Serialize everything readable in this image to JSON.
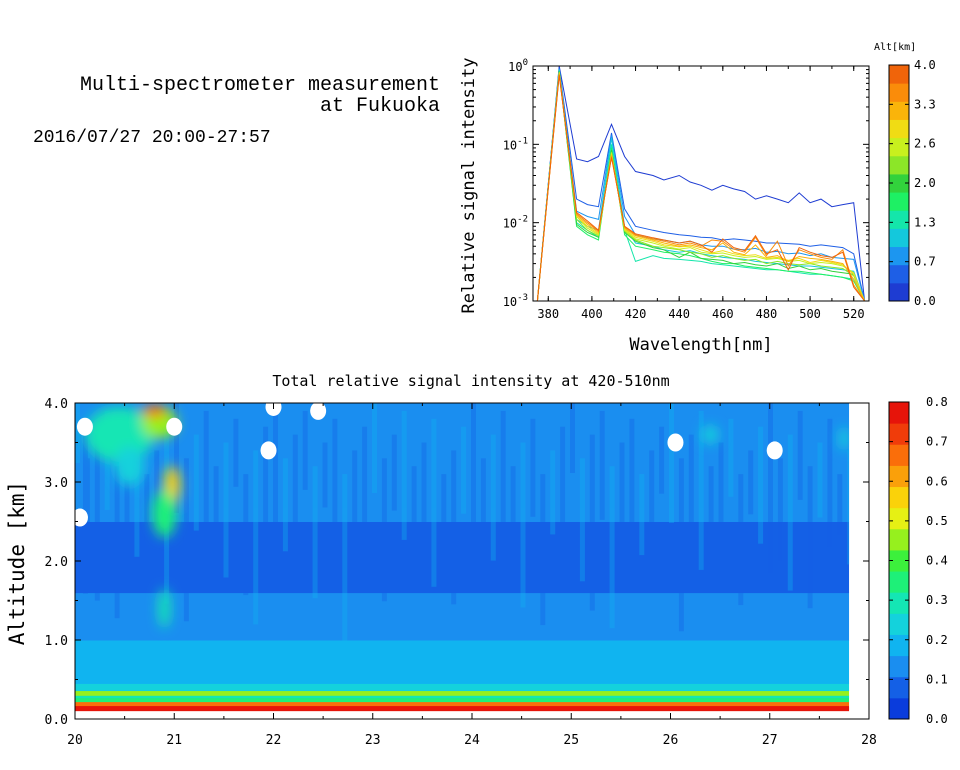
{
  "header": {
    "title_line1": "Multi-spectrometer measurement",
    "title_line2": "at Fukuoka",
    "time_range": "2016/07/27 20:00-27:57"
  },
  "chart_data": [
    {
      "type": "line",
      "xlabel": "Wavelength[nm]",
      "ylabel": "Relative signal intensity",
      "y_scale": "log",
      "xlim": [
        373,
        527
      ],
      "ylim": [
        0.001,
        1
      ],
      "x_ticks": [
        "380",
        "400",
        "420",
        "440",
        "460",
        "480",
        "500",
        "520"
      ],
      "y_ticks": [
        "10^-3",
        "10^-2",
        "10^-1",
        "10^0"
      ],
      "x": [
        375,
        385,
        393,
        398,
        403,
        409,
        415,
        420,
        428,
        433,
        440,
        445,
        450,
        455,
        460,
        465,
        470,
        475,
        480,
        485,
        490,
        495,
        500,
        505,
        510,
        515,
        520,
        525
      ],
      "series": [
        {
          "alt": 0.0,
          "color": "#1e3cd2",
          "values": [
            0.001,
            1.0,
            0.065,
            0.06,
            0.07,
            0.18,
            0.07,
            0.045,
            0.04,
            0.035,
            0.04,
            0.033,
            0.03,
            0.026,
            0.03,
            0.027,
            0.025,
            0.02,
            0.022,
            0.02,
            0.018,
            0.024,
            0.018,
            0.02,
            0.016,
            0.017,
            0.018,
            0.001
          ]
        },
        {
          "alt": 0.4,
          "color": "#1e5fe6",
          "values": [
            0.001,
            0.95,
            0.02,
            0.017,
            0.016,
            0.14,
            0.015,
            0.009,
            0.008,
            0.0075,
            0.007,
            0.0068,
            0.0065,
            0.0064,
            0.006,
            0.0062,
            0.006,
            0.0058,
            0.0055,
            0.0055,
            0.0054,
            0.0053,
            0.005,
            0.0052,
            0.005,
            0.0048,
            0.004,
            0.001
          ]
        },
        {
          "alt": 0.7,
          "color": "#1c96f0",
          "values": [
            0.001,
            0.92,
            0.014,
            0.012,
            0.011,
            0.13,
            0.012,
            0.007,
            0.0062,
            0.006,
            0.0055,
            0.0058,
            0.0052,
            0.005,
            0.005,
            0.0046,
            0.0045,
            0.0047,
            0.0042,
            0.0043,
            0.004,
            0.0041,
            0.0038,
            0.004,
            0.0036,
            0.0035,
            0.0034,
            0.001
          ]
        },
        {
          "alt": 1.0,
          "color": "#14c8dc",
          "values": [
            0.001,
            0.9,
            0.011,
            0.009,
            0.008,
            0.12,
            0.009,
            0.0055,
            0.005,
            0.0045,
            0.0042,
            0.0044,
            0.004,
            0.0038,
            0.0036,
            0.0035,
            0.0034,
            0.0032,
            0.0031,
            0.003,
            0.0029,
            0.0028,
            0.0028,
            0.0027,
            0.0026,
            0.0025,
            0.0024,
            0.001
          ]
        },
        {
          "alt": 1.3,
          "color": "#14e6aa",
          "values": [
            0.001,
            0.88,
            0.01,
            0.008,
            0.0065,
            0.1,
            0.008,
            0.0032,
            0.0038,
            0.0035,
            0.0034,
            0.0033,
            0.0032,
            0.003,
            0.0029,
            0.0028,
            0.0027,
            0.0026,
            0.0025,
            0.0025,
            0.0024,
            0.0023,
            0.0022,
            0.0022,
            0.0021,
            0.002,
            0.0019,
            0.001
          ]
        },
        {
          "alt": 1.7,
          "color": "#1ef064",
          "values": [
            0.001,
            0.86,
            0.009,
            0.007,
            0.006,
            0.09,
            0.007,
            0.005,
            0.0045,
            0.0042,
            0.004,
            0.0038,
            0.0035,
            0.0032,
            0.003,
            0.003,
            0.0028,
            0.0027,
            0.0026,
            0.0025,
            0.0024,
            0.0024,
            0.0023,
            0.0022,
            0.0021,
            0.002,
            0.0018,
            0.001
          ]
        },
        {
          "alt": 2.0,
          "color": "#32d23c",
          "values": [
            0.001,
            0.85,
            0.0095,
            0.0075,
            0.0065,
            0.085,
            0.0075,
            0.0058,
            0.0048,
            0.0045,
            0.0036,
            0.0042,
            0.0035,
            0.0034,
            0.0033,
            0.003,
            0.0031,
            0.0029,
            0.0028,
            0.003,
            0.0026,
            0.0028,
            0.0025,
            0.0026,
            0.0024,
            0.0023,
            0.0022,
            0.001
          ]
        },
        {
          "alt": 2.3,
          "color": "#8ce628",
          "values": [
            0.001,
            0.84,
            0.011,
            0.008,
            0.0068,
            0.08,
            0.0078,
            0.006,
            0.005,
            0.0048,
            0.0045,
            0.0042,
            0.004,
            0.0036,
            0.0038,
            0.0035,
            0.0033,
            0.0034,
            0.003,
            0.0032,
            0.003,
            0.0029,
            0.003,
            0.0028,
            0.0027,
            0.0026,
            0.0021,
            0.001
          ]
        },
        {
          "alt": 2.6,
          "color": "#c8f01e",
          "values": [
            0.001,
            0.83,
            0.012,
            0.0085,
            0.007,
            0.078,
            0.008,
            0.0062,
            0.0055,
            0.005,
            0.0046,
            0.0048,
            0.0042,
            0.004,
            0.0041,
            0.0038,
            0.0036,
            0.0037,
            0.0034,
            0.0035,
            0.0032,
            0.0033,
            0.003,
            0.0031,
            0.003,
            0.0028,
            0.0023,
            0.001
          ]
        },
        {
          "alt": 3.0,
          "color": "#f0dc14",
          "values": [
            0.001,
            0.82,
            0.012,
            0.009,
            0.0072,
            0.075,
            0.0082,
            0.0065,
            0.0058,
            0.0052,
            0.0049,
            0.005,
            0.0045,
            0.0041,
            0.0044,
            0.004,
            0.0038,
            0.0039,
            0.0035,
            0.0036,
            0.0033,
            0.0035,
            0.0031,
            0.0033,
            0.0031,
            0.0029,
            0.0022,
            0.001
          ]
        },
        {
          "alt": 3.3,
          "color": "#fab40a",
          "values": [
            0.001,
            0.8,
            0.0125,
            0.0095,
            0.0075,
            0.072,
            0.0085,
            0.0068,
            0.006,
            0.0055,
            0.005,
            0.0052,
            0.0048,
            0.0045,
            0.0055,
            0.0042,
            0.0039,
            0.0052,
            0.0036,
            0.0038,
            0.0032,
            0.0037,
            0.0035,
            0.0034,
            0.0032,
            0.003,
            0.0019,
            0.001
          ]
        },
        {
          "alt": 3.7,
          "color": "#fa8c0a",
          "values": [
            0.001,
            0.78,
            0.013,
            0.01,
            0.0078,
            0.07,
            0.0088,
            0.007,
            0.0062,
            0.0058,
            0.0052,
            0.0055,
            0.005,
            0.006,
            0.0058,
            0.0046,
            0.0042,
            0.0065,
            0.0038,
            0.0058,
            0.0028,
            0.0045,
            0.004,
            0.0036,
            0.0034,
            0.0045,
            0.0016,
            0.001
          ]
        },
        {
          "alt": 4.0,
          "color": "#f0640a",
          "values": [
            0.001,
            0.76,
            0.0135,
            0.0105,
            0.008,
            0.068,
            0.009,
            0.0072,
            0.0064,
            0.006,
            0.0055,
            0.0058,
            0.0052,
            0.0042,
            0.0062,
            0.0048,
            0.0044,
            0.0068,
            0.004,
            0.0045,
            0.0025,
            0.0048,
            0.0042,
            0.0038,
            0.0036,
            0.0042,
            0.0015,
            0.001
          ]
        }
      ],
      "colorbar": {
        "title": "Alt[km]",
        "range": [
          0.0,
          4.0
        ],
        "tick_labels": [
          "0.0",
          "0.7",
          "1.3",
          "2.0",
          "2.6",
          "3.3",
          "4.0"
        ],
        "colors": [
          "#1e3cd2",
          "#1e5fe6",
          "#1c96f0",
          "#14c8dc",
          "#14e6aa",
          "#1ef064",
          "#32d23c",
          "#8ce628",
          "#c8f01e",
          "#f0dc14",
          "#fab40a",
          "#fa8c0a",
          "#f0640a"
        ]
      }
    },
    {
      "type": "heatmap",
      "title": "Total relative signal intensity at 420-510nm",
      "xlabel": "",
      "ylabel": "Altitude [km]",
      "xlim": [
        20,
        28
      ],
      "ylim": [
        0.0,
        4.0
      ],
      "x_ticks": [
        "20",
        "21",
        "22",
        "23",
        "24",
        "25",
        "26",
        "27",
        "28"
      ],
      "y_ticks": [
        "0.0",
        "1.0",
        "2.0",
        "3.0",
        "4.0"
      ],
      "data_x_end": 27.8,
      "altitude_bands": [
        {
          "from": 0.0,
          "to": 0.12,
          "value": null
        },
        {
          "from": 0.12,
          "to": 0.17,
          "value": 0.75
        },
        {
          "from": 0.17,
          "to": 0.22,
          "value": 0.65
        },
        {
          "from": 0.22,
          "to": 0.27,
          "value": 0.35
        },
        {
          "from": 0.27,
          "to": 0.3,
          "value": 0.28
        },
        {
          "from": 0.3,
          "to": 0.36,
          "value": 0.45
        },
        {
          "from": 0.36,
          "to": 0.45,
          "value": 0.25
        },
        {
          "from": 0.45,
          "to": 1.0,
          "value": 0.18
        },
        {
          "from": 1.0,
          "to": 1.6,
          "value": 0.13
        },
        {
          "from": 1.6,
          "to": 2.5,
          "value": 0.08
        },
        {
          "from": 2.5,
          "to": 4.0,
          "value": 0.11
        }
      ],
      "hotspots": [
        {
          "x": 20.45,
          "y": 3.6,
          "rx": 0.35,
          "ry": 0.35,
          "value": 0.3
        },
        {
          "x": 20.85,
          "y": 3.75,
          "rx": 0.18,
          "ry": 0.2,
          "value": 0.45
        },
        {
          "x": 20.8,
          "y": 3.9,
          "rx": 0.12,
          "ry": 0.08,
          "value": 0.65
        },
        {
          "x": 20.98,
          "y": 2.95,
          "rx": 0.08,
          "ry": 0.25,
          "value": 0.55
        },
        {
          "x": 20.9,
          "y": 2.6,
          "rx": 0.12,
          "ry": 0.3,
          "value": 0.35
        },
        {
          "x": 20.9,
          "y": 1.4,
          "rx": 0.06,
          "ry": 0.25,
          "value": 0.28
        },
        {
          "x": 20.55,
          "y": 3.2,
          "rx": 0.15,
          "ry": 0.25,
          "value": 0.25
        },
        {
          "x": 26.4,
          "y": 3.6,
          "rx": 0.08,
          "ry": 0.12,
          "value": 0.22
        },
        {
          "x": 27.75,
          "y": 3.55,
          "rx": 0.05,
          "ry": 0.15,
          "value": 0.25
        }
      ],
      "missing_data": [
        {
          "x": 21.0,
          "y": 3.7
        },
        {
          "x": 21.95,
          "y": 3.4
        },
        {
          "x": 22.0,
          "y": 3.95
        },
        {
          "x": 26.05,
          "y": 3.5
        },
        {
          "x": 27.05,
          "y": 3.4
        },
        {
          "x": 20.05,
          "y": 2.55
        },
        {
          "x": 20.1,
          "y": 3.7
        },
        {
          "x": 22.45,
          "y": 3.9
        }
      ],
      "colorbar": {
        "range": [
          0.0,
          0.8
        ],
        "tick_labels": [
          "0.0",
          "0.1",
          "0.2",
          "0.3",
          "0.4",
          "0.5",
          "0.6",
          "0.7",
          "0.8"
        ],
        "colors": [
          "#0a3cdc",
          "#1460e6",
          "#1a8ef0",
          "#10b4f0",
          "#14d2dc",
          "#14e6b4",
          "#1ef078",
          "#3cf03c",
          "#96f01e",
          "#e6f014",
          "#fad20a",
          "#faa00a",
          "#fa6e0a",
          "#f03c0a",
          "#e6140a"
        ]
      }
    }
  ]
}
